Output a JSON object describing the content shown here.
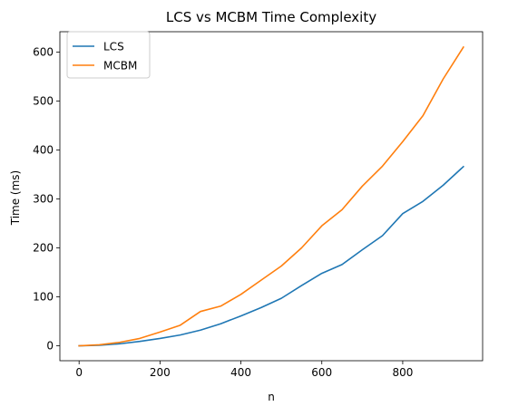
{
  "chart_data": {
    "type": "line",
    "title": "LCS vs MCBM Time Complexity",
    "xlabel": "n",
    "ylabel": "Time (ms)",
    "xlim": [
      -47.5,
      997.5
    ],
    "ylim": [
      -30.5,
      641.5
    ],
    "xticks": [
      0,
      200,
      400,
      600,
      800
    ],
    "yticks": [
      0,
      100,
      200,
      300,
      400,
      500,
      600
    ],
    "grid": false,
    "legend_position": "upper-left",
    "x": [
      0,
      50,
      100,
      150,
      200,
      250,
      300,
      350,
      400,
      450,
      500,
      550,
      600,
      650,
      700,
      750,
      800,
      850,
      900,
      950
    ],
    "series": [
      {
        "name": "LCS",
        "color": "#1f77b4",
        "values": [
          0,
          1,
          4,
          9,
          15,
          22,
          32,
          45,
          61,
          78,
          97,
          123,
          148,
          166,
          196,
          225,
          270,
          295,
          328,
          366
        ]
      },
      {
        "name": "MCBM",
        "color": "#ff7f0e",
        "values": [
          0,
          2,
          7,
          15,
          28,
          42,
          70,
          81,
          105,
          134,
          163,
          200,
          245,
          278,
          326,
          367,
          417,
          470,
          545,
          610
        ]
      }
    ]
  }
}
